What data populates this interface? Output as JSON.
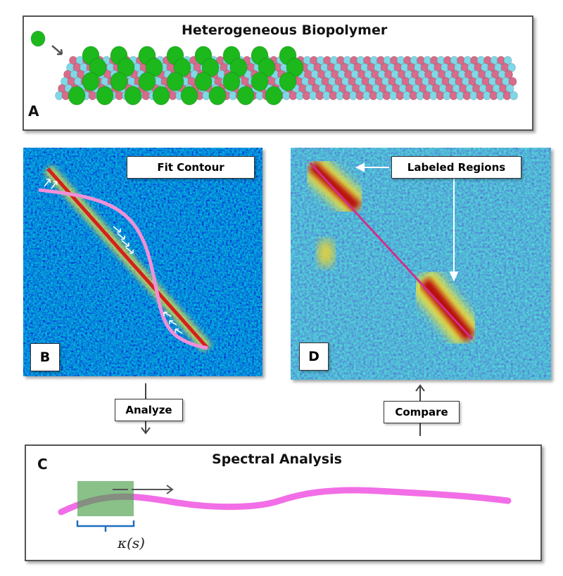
{
  "panel_a": {
    "letter": "A",
    "title": "Heterogeneous Biopolymer"
  },
  "panel_b": {
    "letter": "B",
    "label": "Fit Contour"
  },
  "panel_c": {
    "letter": "C",
    "title": "Spectral Analysis",
    "window_label": "κ(s)"
  },
  "panel_d": {
    "letter": "D",
    "label": "Labeled Regions"
  },
  "flow": {
    "analyze_label": "Analyze",
    "compare_label": "Compare"
  },
  "colors": {
    "bead_pink": "#d96b8a",
    "bead_cyan": "#7fd8e6",
    "bead_green": "#1cb81c",
    "contour_pink": "#f06ee6",
    "window_green": "#5aae5a",
    "bracket_blue": "#1f6fc0"
  }
}
